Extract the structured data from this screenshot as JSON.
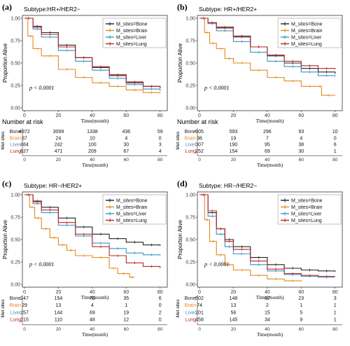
{
  "colors": {
    "Bone": "#222222",
    "Brain": "#e8891e",
    "Liver": "#3a93c3",
    "Lung": "#b5262b"
  },
  "chart_data": [
    {
      "type": "line",
      "panel_label": "(a)",
      "title": "Subtype:HR+/HER2−",
      "xlabel": "Time(month)",
      "ylabel": "Proportion Alive",
      "xlim": [
        0,
        83
      ],
      "ylim": [
        0,
        1
      ],
      "x_ticks": [
        "0",
        "20",
        "40",
        "60",
        "80"
      ],
      "y_ticks": [
        "0.00",
        "0.25",
        "0.50",
        "0.75",
        "1.00"
      ],
      "p_value": "p < 0.0001",
      "legend_position": "top-right",
      "risk_title": "Number at risk",
      "risk_axis_label": "Met sites",
      "risk_xlabel": "Time(month)",
      "series": [
        {
          "name": "M_sites=Bone",
          "key": "Bone",
          "x": [
            0,
            5,
            10,
            20,
            30,
            40,
            50,
            60,
            70,
            80
          ],
          "y": [
            1.0,
            0.91,
            0.84,
            0.7,
            0.56,
            0.45,
            0.36,
            0.28,
            0.24,
            0.22
          ]
        },
        {
          "name": "M_sites=Brain",
          "key": "Brain",
          "x": [
            0,
            2,
            5,
            10,
            20,
            30,
            40,
            50,
            60,
            70,
            80
          ],
          "y": [
            1.0,
            0.8,
            0.66,
            0.58,
            0.43,
            0.34,
            0.28,
            0.24,
            0.2,
            0.17,
            0.16
          ]
        },
        {
          "name": "M_sites=Liver",
          "key": "Liver",
          "x": [
            0,
            5,
            10,
            20,
            30,
            40,
            50,
            60,
            70,
            80
          ],
          "y": [
            1.0,
            0.88,
            0.79,
            0.64,
            0.52,
            0.42,
            0.33,
            0.26,
            0.21,
            0.19
          ]
        },
        {
          "name": "M_sites=Lung",
          "key": "Lung",
          "x": [
            0,
            5,
            10,
            20,
            30,
            40,
            50,
            60,
            70,
            80
          ],
          "y": [
            1.0,
            0.9,
            0.82,
            0.68,
            0.56,
            0.46,
            0.37,
            0.29,
            0.24,
            0.23
          ]
        }
      ],
      "risk_rows": [
        {
          "label": "Bone",
          "key": "Bone",
          "values": [
            "4872",
            "3099",
            "1338",
            "436",
            "59"
          ]
        },
        {
          "label": "Brain",
          "key": "Brain",
          "values": [
            "87",
            "24",
            "10",
            "4",
            "0"
          ]
        },
        {
          "label": "Liver",
          "key": "Liver",
          "values": [
            "484",
            "242",
            "100",
            "30",
            "3"
          ]
        },
        {
          "label": "Lung",
          "key": "Lung",
          "values": [
            "827",
            "471",
            "209",
            "67",
            "4"
          ]
        }
      ]
    },
    {
      "type": "line",
      "panel_label": "(b)",
      "title": "Subtype: HR+/HER2+",
      "xlabel": "Time(month)",
      "ylabel": "Proportion Alive",
      "xlim": [
        0,
        83
      ],
      "ylim": [
        0,
        1
      ],
      "x_ticks": [
        "0",
        "20",
        "40",
        "60",
        "80"
      ],
      "y_ticks": [
        "0.00",
        "0.25",
        "0.50",
        "0.75",
        "1.00"
      ],
      "p_value": "p < 0.0001",
      "legend_position": "top-right",
      "risk_title": "Number at risk",
      "risk_axis_label": "Met sites",
      "risk_xlabel": "Time(month)",
      "series": [
        {
          "name": "M_sites=Bone",
          "key": "Bone",
          "x": [
            0,
            5,
            10,
            20,
            30,
            40,
            50,
            60,
            70,
            80
          ],
          "y": [
            1.0,
            0.95,
            0.9,
            0.8,
            0.68,
            0.58,
            0.5,
            0.44,
            0.4,
            0.38
          ]
        },
        {
          "name": "M_sites=Brain",
          "key": "Brain",
          "x": [
            0,
            3,
            6,
            10,
            15,
            20,
            30,
            40,
            50,
            60,
            70,
            72,
            80
          ],
          "y": [
            1.0,
            0.84,
            0.72,
            0.66,
            0.55,
            0.5,
            0.42,
            0.34,
            0.3,
            0.24,
            0.24,
            0.14,
            0.14
          ]
        },
        {
          "name": "M_sites=Liver",
          "key": "Liver",
          "x": [
            0,
            5,
            10,
            20,
            30,
            40,
            50,
            60,
            70,
            80
          ],
          "y": [
            1.0,
            0.94,
            0.86,
            0.74,
            0.62,
            0.52,
            0.46,
            0.4,
            0.36,
            0.35
          ]
        },
        {
          "name": "M_sites=Lung",
          "key": "Lung",
          "x": [
            0,
            5,
            10,
            20,
            30,
            40,
            50,
            60,
            70,
            80
          ],
          "y": [
            1.0,
            0.95,
            0.89,
            0.79,
            0.68,
            0.59,
            0.52,
            0.47,
            0.44,
            0.43
          ]
        }
      ],
      "risk_rows": [
        {
          "label": "Bone",
          "key": "Bone",
          "values": [
            "905",
            "593",
            "296",
            "93",
            "10"
          ]
        },
        {
          "label": "Brain",
          "key": "Brain",
          "values": [
            "36",
            "19",
            "7",
            "4",
            "0"
          ]
        },
        {
          "label": "Liver",
          "key": "Liver",
          "values": [
            "307",
            "190",
            "95",
            "38",
            "6"
          ]
        },
        {
          "label": "Lung",
          "key": "Lung",
          "values": [
            "252",
            "154",
            "69",
            "30",
            "1"
          ]
        }
      ]
    },
    {
      "type": "line",
      "panel_label": "(c)",
      "title": "Subtype: HR−/HER2+",
      "xlabel": "Time(month)",
      "ylabel": "Proportion Alive",
      "xlim": [
        0,
        83
      ],
      "ylim": [
        0,
        1
      ],
      "x_ticks": [
        "0",
        "20",
        "40",
        "60",
        "80"
      ],
      "y_ticks": [
        "0.00",
        "0.25",
        "0.50",
        "0.75",
        "1.00"
      ],
      "p_value": "p < 0.0001",
      "legend_position": "top-right",
      "risk_title": "",
      "risk_axis_label": "Met sites",
      "risk_xlabel": "Time(month)",
      "series": [
        {
          "name": "M_sites=Bone",
          "key": "Bone",
          "x": [
            0,
            5,
            10,
            20,
            30,
            40,
            50,
            60,
            70,
            80
          ],
          "y": [
            1.0,
            0.93,
            0.86,
            0.74,
            0.64,
            0.56,
            0.51,
            0.47,
            0.44,
            0.43
          ]
        },
        {
          "name": "M_sites=Brain",
          "key": "Brain",
          "x": [
            0,
            3,
            6,
            10,
            15,
            20,
            25,
            30,
            40,
            50,
            55,
            62,
            65
          ],
          "y": [
            1.0,
            0.86,
            0.74,
            0.62,
            0.52,
            0.44,
            0.38,
            0.32,
            0.3,
            0.18,
            0.12,
            0.08,
            0.08
          ]
        },
        {
          "name": "M_sites=Liver",
          "key": "Liver",
          "x": [
            0,
            5,
            10,
            20,
            30,
            40,
            50,
            60,
            70,
            80
          ],
          "y": [
            1.0,
            0.9,
            0.8,
            0.66,
            0.54,
            0.46,
            0.4,
            0.35,
            0.33,
            0.32
          ]
        },
        {
          "name": "M_sites=Lung",
          "key": "Lung",
          "x": [
            0,
            5,
            10,
            20,
            30,
            40,
            50,
            60,
            70,
            80
          ],
          "y": [
            1.0,
            0.92,
            0.83,
            0.69,
            0.56,
            0.42,
            0.32,
            0.24,
            0.2,
            0.18
          ]
        }
      ],
      "risk_rows": [
        {
          "label": "Bone",
          "key": "Bone",
          "values": [
            "247",
            "154",
            "76",
            "35",
            "6"
          ]
        },
        {
          "label": "Brain",
          "key": "Brain",
          "values": [
            "29",
            "13",
            "4",
            "1",
            "0"
          ]
        },
        {
          "label": "Liver",
          "key": "Liver",
          "values": [
            "257",
            "144",
            "69",
            "19",
            "2"
          ]
        },
        {
          "label": "Lung",
          "key": "Lung",
          "values": [
            "215",
            "110",
            "48",
            "12",
            "0"
          ]
        }
      ]
    },
    {
      "type": "line",
      "panel_label": "(d)",
      "title": "Subtype: HR−/HER2−",
      "xlabel": "Time(month)",
      "ylabel": "Proportion Alive",
      "xlim": [
        0,
        83
      ],
      "ylim": [
        0,
        1
      ],
      "x_ticks": [
        "0",
        "20",
        "40",
        "60",
        "80"
      ],
      "y_ticks": [
        "0.00",
        "0.25",
        "0.50",
        "0.75",
        "1.00"
      ],
      "p_value": "p < 0.0001",
      "legend_position": "top-right",
      "risk_title": "",
      "risk_axis_label": "Met sites",
      "risk_xlabel": "Time(month)",
      "series": [
        {
          "name": "M_sites=Bone",
          "key": "Bone",
          "x": [
            0,
            5,
            10,
            15,
            20,
            30,
            40,
            50,
            60,
            70,
            80
          ],
          "y": [
            1.0,
            0.8,
            0.62,
            0.5,
            0.42,
            0.3,
            0.22,
            0.18,
            0.16,
            0.15,
            0.14
          ]
        },
        {
          "name": "M_sites=Brain",
          "key": "Brain",
          "x": [
            0,
            3,
            6,
            10,
            15,
            20,
            30,
            40,
            50,
            60
          ],
          "y": [
            1.0,
            0.72,
            0.48,
            0.33,
            0.22,
            0.16,
            0.1,
            0.06,
            0.04,
            0.03
          ]
        },
        {
          "name": "M_sites=Liver",
          "key": "Liver",
          "x": [
            0,
            5,
            10,
            15,
            20,
            30,
            40,
            50,
            60,
            70,
            80
          ],
          "y": [
            1.0,
            0.76,
            0.56,
            0.42,
            0.34,
            0.22,
            0.15,
            0.11,
            0.09,
            0.08,
            0.08
          ]
        },
        {
          "name": "M_sites=Lung",
          "key": "Lung",
          "x": [
            0,
            5,
            10,
            15,
            20,
            30,
            40,
            50,
            60,
            70,
            80
          ],
          "y": [
            1.0,
            0.82,
            0.62,
            0.48,
            0.39,
            0.26,
            0.17,
            0.12,
            0.1,
            0.09,
            0.09
          ]
        }
      ],
      "risk_rows": [
        {
          "label": "Bone",
          "key": "Bone",
          "values": [
            "502",
            "148",
            "57",
            "23",
            "3"
          ]
        },
        {
          "label": "Brain",
          "key": "Brain",
          "values": [
            "74",
            "13",
            "2",
            "1",
            "1"
          ]
        },
        {
          "label": "Liver",
          "key": "Liver",
          "values": [
            "201",
            "56",
            "15",
            "5",
            "1"
          ]
        },
        {
          "label": "Lung",
          "key": "Lung",
          "values": [
            "458",
            "145",
            "34",
            "9",
            "1"
          ]
        }
      ]
    }
  ]
}
